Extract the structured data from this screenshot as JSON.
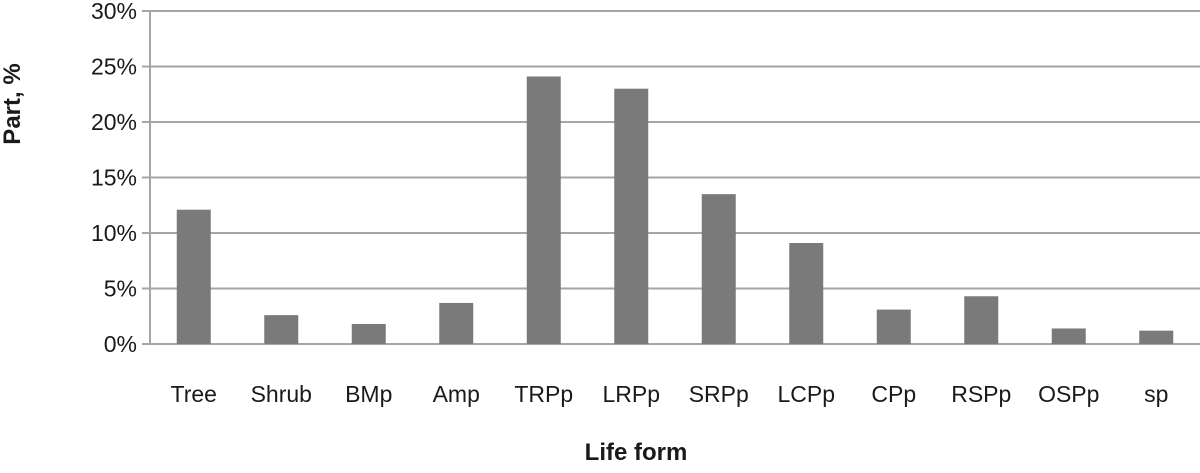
{
  "chart_data": {
    "type": "bar",
    "title": "",
    "xlabel": "Life form",
    "ylabel": "Part, %",
    "categories": [
      "Tree",
      "Shrub",
      "BMp",
      "Amp",
      "TRPp",
      "LRPp",
      "SRPp",
      "LCPp",
      "CPp",
      "RSPp",
      "OSPp",
      "sp"
    ],
    "values": [
      12.1,
      2.6,
      1.8,
      3.7,
      24.1,
      23.0,
      13.5,
      9.1,
      3.1,
      4.3,
      1.4,
      1.2
    ],
    "ylim": [
      0,
      30
    ],
    "yticks": [
      0,
      5,
      10,
      15,
      20,
      25,
      30
    ],
    "ytick_labels": [
      "0%",
      "5%",
      "10%",
      "15%",
      "20%",
      "25%",
      "30%"
    ],
    "grid": true,
    "legend": "none",
    "bar_color": "#7a7a7a",
    "grid_color": "#a6a6a6"
  }
}
